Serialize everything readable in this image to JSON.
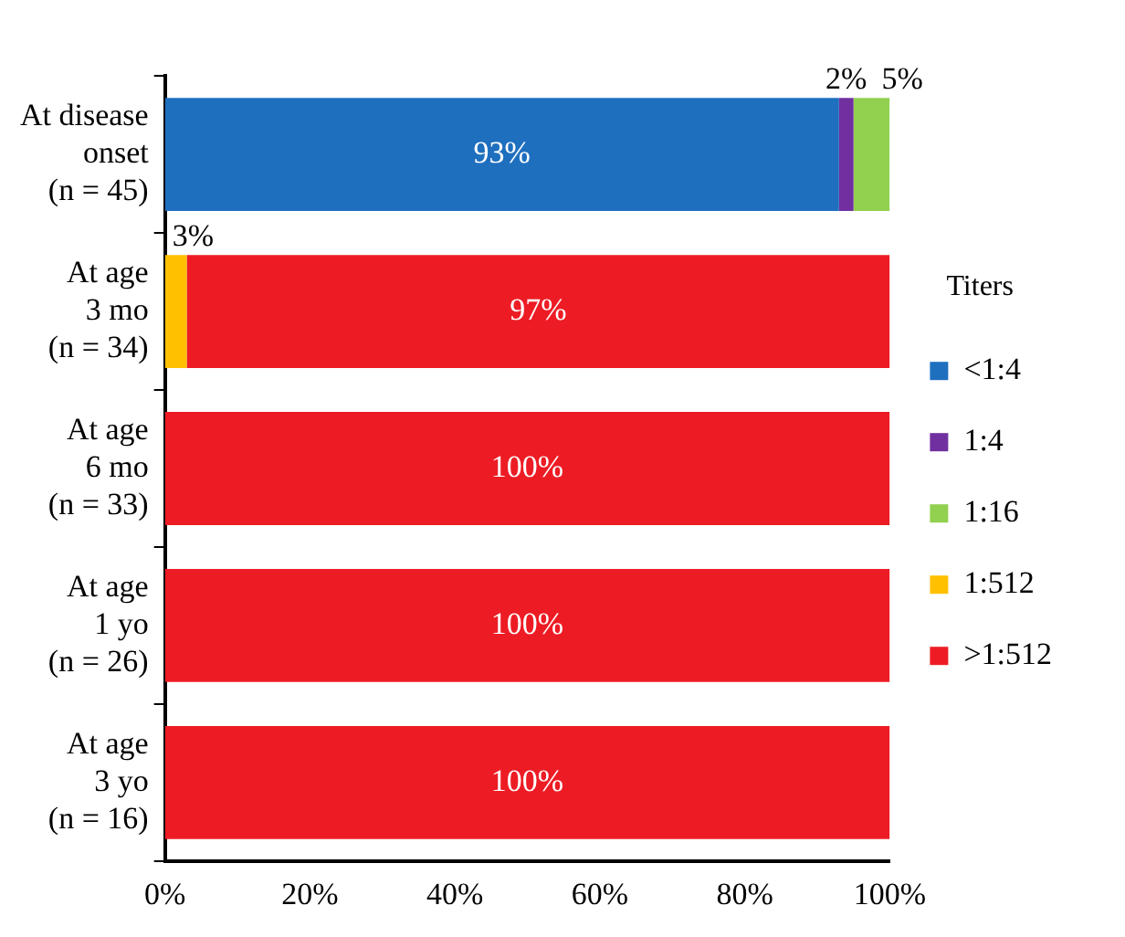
{
  "chart_data": {
    "type": "bar",
    "orientation": "horizontal",
    "stacked": true,
    "legend": "right",
    "legend_title": "Titers",
    "grid": false,
    "categories": [
      "At disease onset (n = 45)",
      "At age 3 mo (n = 34)",
      "At age 6 mo (n = 33)",
      "At age 1 yo (n = 26)",
      "At age 3 yo (n = 16)"
    ],
    "xlim": [
      0,
      100
    ],
    "xticks": [
      {
        "value": 0,
        "label": "0%"
      },
      {
        "value": 20,
        "label": "20%"
      },
      {
        "value": 40,
        "label": "40%"
      },
      {
        "value": 60,
        "label": "60%"
      },
      {
        "value": 80,
        "label": "80%"
      },
      {
        "value": 100,
        "label": "100%"
      }
    ],
    "series": [
      {
        "name": "<1:4",
        "color": "#1f6fbf",
        "values": [
          93,
          null,
          null,
          null,
          null
        ],
        "value_labels": [
          "93%",
          null,
          null,
          null,
          null
        ]
      },
      {
        "name": "1:4",
        "color": "#7030a0",
        "values": [
          2,
          null,
          null,
          null,
          null
        ],
        "value_labels": [
          "2%",
          null,
          null,
          null,
          null
        ]
      },
      {
        "name": "1:16",
        "color": "#92d050",
        "values": [
          5,
          null,
          null,
          null,
          null
        ],
        "value_labels": [
          "5%",
          null,
          null,
          null,
          null
        ]
      },
      {
        "name": "1:512",
        "color": "#ffc000",
        "values": [
          null,
          3,
          null,
          null,
          null
        ],
        "value_labels": [
          null,
          "3%",
          null,
          null,
          null
        ]
      },
      {
        "name": ">1:512",
        "color": "#ed1c24",
        "values": [
          null,
          97,
          100,
          100,
          100
        ],
        "value_labels": [
          null,
          "97%",
          "100%",
          "100%",
          "100%"
        ]
      }
    ]
  }
}
